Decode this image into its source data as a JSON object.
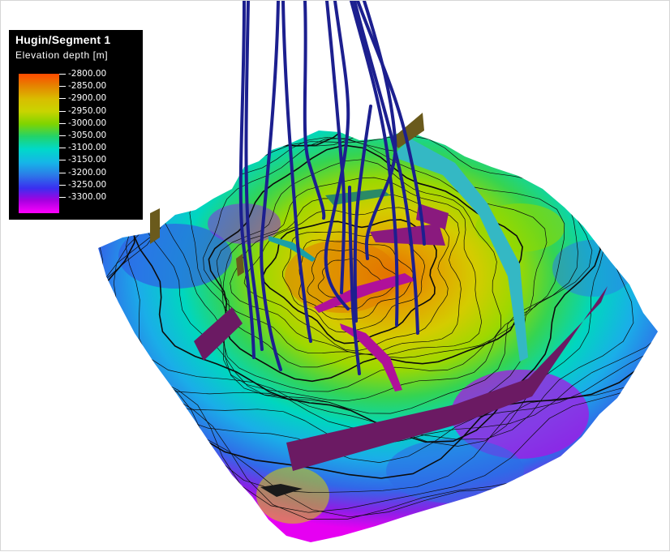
{
  "legend": {
    "title": "Hugin/Segment 1",
    "subtitle": "Elevation depth [m]",
    "labels": [
      "-2800.00",
      "-2850.00",
      "-2900.00",
      "-2950.00",
      "-3000.00",
      "-3050.00",
      "-3100.00",
      "-3150.00",
      "-3200.00",
      "-3250.00",
      "-3300.00"
    ]
  },
  "colors": {
    "well": "#1c1f8f",
    "fault_purple": "#6b1a63",
    "fault_magenta": "#b0109a",
    "fault_cyan": "#34b8c4",
    "fault_olive": "#6a5a1c"
  }
}
